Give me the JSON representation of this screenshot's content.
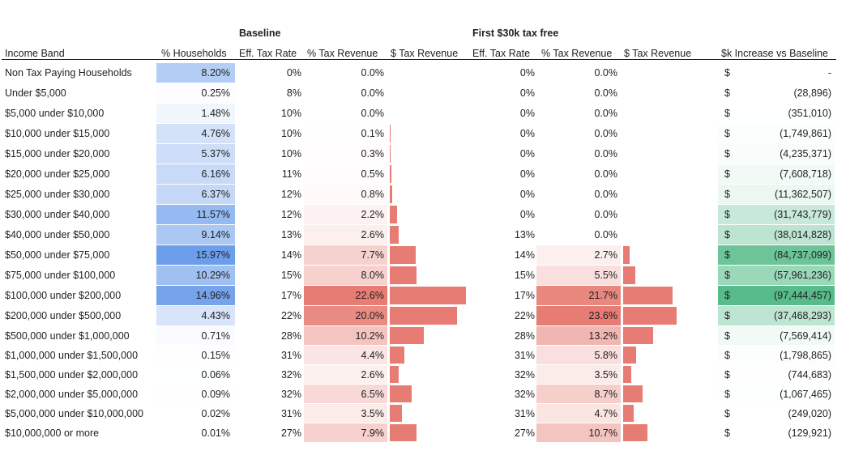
{
  "group_titles": {
    "baseline": "Baseline",
    "first_30k": "First $30k tax free"
  },
  "headers": {
    "income_band": "Income Band",
    "households": "% Households",
    "baseline_rate": "Eff. Tax Rate",
    "baseline_pct": "% Tax Revenue",
    "baseline_dollar": "$ Tax Revenue",
    "first_rate": "Eff. Tax Rate",
    "first_pct": "% Tax Revenue",
    "first_dollar": "$ Tax Revenue",
    "increase": "$k Increase vs Baseline"
  },
  "currency_symbol": "$",
  "colors": {
    "households_scale": [
      "#ffffff",
      "#6d9eeb"
    ],
    "revenue_scale": [
      "#ffffff",
      "#e67c73"
    ],
    "increase_scale": [
      "#ffffff",
      "#57bb8a"
    ],
    "bar": "#e67c73"
  },
  "rows": [
    {
      "band": "Non Tax Paying Households",
      "households": "8.20%",
      "households_value": 8.2,
      "baseline_rate": "0%",
      "baseline_pct": "0.0%",
      "baseline_pct_value": 0.0,
      "first_rate": "0%",
      "first_pct": "0.0%",
      "first_pct_value": 0.0,
      "increase": "-",
      "increase_value": 0
    },
    {
      "band": "Under $5,000",
      "households": "0.25%",
      "households_value": 0.25,
      "baseline_rate": "8%",
      "baseline_pct": "0.0%",
      "baseline_pct_value": 0.0,
      "first_rate": "0%",
      "first_pct": "0.0%",
      "first_pct_value": 0.0,
      "increase": "(28,896)",
      "increase_value": -28896
    },
    {
      "band": "$5,000 under $10,000",
      "households": "1.48%",
      "households_value": 1.48,
      "baseline_rate": "10%",
      "baseline_pct": "0.0%",
      "baseline_pct_value": 0.0,
      "first_rate": "0%",
      "first_pct": "0.0%",
      "first_pct_value": 0.0,
      "increase": "(351,010)",
      "increase_value": -351010
    },
    {
      "band": "$10,000 under $15,000",
      "households": "4.76%",
      "households_value": 4.76,
      "baseline_rate": "10%",
      "baseline_pct": "0.1%",
      "baseline_pct_value": 0.1,
      "first_rate": "0%",
      "first_pct": "0.0%",
      "first_pct_value": 0.0,
      "increase": "(1,749,861)",
      "increase_value": -1749861
    },
    {
      "band": "$15,000 under $20,000",
      "households": "5.37%",
      "households_value": 5.37,
      "baseline_rate": "10%",
      "baseline_pct": "0.3%",
      "baseline_pct_value": 0.3,
      "first_rate": "0%",
      "first_pct": "0.0%",
      "first_pct_value": 0.0,
      "increase": "(4,235,371)",
      "increase_value": -4235371
    },
    {
      "band": "$20,000 under $25,000",
      "households": "6.16%",
      "households_value": 6.16,
      "baseline_rate": "11%",
      "baseline_pct": "0.5%",
      "baseline_pct_value": 0.5,
      "first_rate": "0%",
      "first_pct": "0.0%",
      "first_pct_value": 0.0,
      "increase": "(7,608,718)",
      "increase_value": -7608718
    },
    {
      "band": "$25,000 under $30,000",
      "households": "6.37%",
      "households_value": 6.37,
      "baseline_rate": "12%",
      "baseline_pct": "0.8%",
      "baseline_pct_value": 0.8,
      "first_rate": "0%",
      "first_pct": "0.0%",
      "first_pct_value": 0.0,
      "increase": "(11,362,507)",
      "increase_value": -11362507
    },
    {
      "band": "$30,000 under $40,000",
      "households": "11.57%",
      "households_value": 11.57,
      "baseline_rate": "12%",
      "baseline_pct": "2.2%",
      "baseline_pct_value": 2.2,
      "first_rate": "0%",
      "first_pct": "0.0%",
      "first_pct_value": 0.0,
      "increase": "(31,743,779)",
      "increase_value": -31743779
    },
    {
      "band": "$40,000 under $50,000",
      "households": "9.14%",
      "households_value": 9.14,
      "baseline_rate": "13%",
      "baseline_pct": "2.6%",
      "baseline_pct_value": 2.6,
      "first_rate": "13%",
      "first_pct": "0.0%",
      "first_pct_value": 0.0,
      "increase": "(38,014,828)",
      "increase_value": -38014828
    },
    {
      "band": "$50,000 under $75,000",
      "households": "15.97%",
      "households_value": 15.97,
      "baseline_rate": "14%",
      "baseline_pct": "7.7%",
      "baseline_pct_value": 7.7,
      "first_rate": "14%",
      "first_pct": "2.7%",
      "first_pct_value": 2.7,
      "increase": "(84,737,099)",
      "increase_value": -84737099
    },
    {
      "band": "$75,000 under $100,000",
      "households": "10.29%",
      "households_value": 10.29,
      "baseline_rate": "15%",
      "baseline_pct": "8.0%",
      "baseline_pct_value": 8.0,
      "first_rate": "15%",
      "first_pct": "5.5%",
      "first_pct_value": 5.5,
      "increase": "(57,961,236)",
      "increase_value": -57961236
    },
    {
      "band": "$100,000 under $200,000",
      "households": "14.96%",
      "households_value": 14.96,
      "baseline_rate": "17%",
      "baseline_pct": "22.6%",
      "baseline_pct_value": 22.6,
      "first_rate": "17%",
      "first_pct": "21.7%",
      "first_pct_value": 21.7,
      "increase": "(97,444,457)",
      "increase_value": -97444457
    },
    {
      "band": "$200,000 under $500,000",
      "households": "4.43%",
      "households_value": 4.43,
      "baseline_rate": "22%",
      "baseline_pct": "20.0%",
      "baseline_pct_value": 20.0,
      "first_rate": "22%",
      "first_pct": "23.6%",
      "first_pct_value": 23.6,
      "increase": "(37,468,293)",
      "increase_value": -37468293
    },
    {
      "band": "$500,000 under $1,000,000",
      "households": "0.71%",
      "households_value": 0.71,
      "baseline_rate": "28%",
      "baseline_pct": "10.2%",
      "baseline_pct_value": 10.2,
      "first_rate": "28%",
      "first_pct": "13.2%",
      "first_pct_value": 13.2,
      "increase": "(7,569,414)",
      "increase_value": -7569414
    },
    {
      "band": "$1,000,000 under $1,500,000",
      "households": "0.15%",
      "households_value": 0.15,
      "baseline_rate": "31%",
      "baseline_pct": "4.4%",
      "baseline_pct_value": 4.4,
      "first_rate": "31%",
      "first_pct": "5.8%",
      "first_pct_value": 5.8,
      "increase": "(1,798,865)",
      "increase_value": -1798865
    },
    {
      "band": "$1,500,000 under $2,000,000",
      "households": "0.06%",
      "households_value": 0.06,
      "baseline_rate": "32%",
      "baseline_pct": "2.6%",
      "baseline_pct_value": 2.6,
      "first_rate": "32%",
      "first_pct": "3.5%",
      "first_pct_value": 3.5,
      "increase": "(744,683)",
      "increase_value": -744683
    },
    {
      "band": "$2,000,000 under $5,000,000",
      "households": "0.09%",
      "households_value": 0.09,
      "baseline_rate": "32%",
      "baseline_pct": "6.5%",
      "baseline_pct_value": 6.5,
      "first_rate": "32%",
      "first_pct": "8.7%",
      "first_pct_value": 8.7,
      "increase": "(1,067,465)",
      "increase_value": -1067465
    },
    {
      "band": "$5,000,000 under $10,000,000",
      "households": "0.02%",
      "households_value": 0.02,
      "baseline_rate": "31%",
      "baseline_pct": "3.5%",
      "baseline_pct_value": 3.5,
      "first_rate": "31%",
      "first_pct": "4.7%",
      "first_pct_value": 4.7,
      "increase": "(249,020)",
      "increase_value": -249020
    },
    {
      "band": "$10,000,000 or more",
      "households": "0.01%",
      "households_value": 0.01,
      "baseline_rate": "27%",
      "baseline_pct": "7.9%",
      "baseline_pct_value": 7.9,
      "first_rate": "27%",
      "first_pct": "10.7%",
      "first_pct_value": 10.7,
      "increase": "(129,921)",
      "increase_value": -129921
    }
  ]
}
